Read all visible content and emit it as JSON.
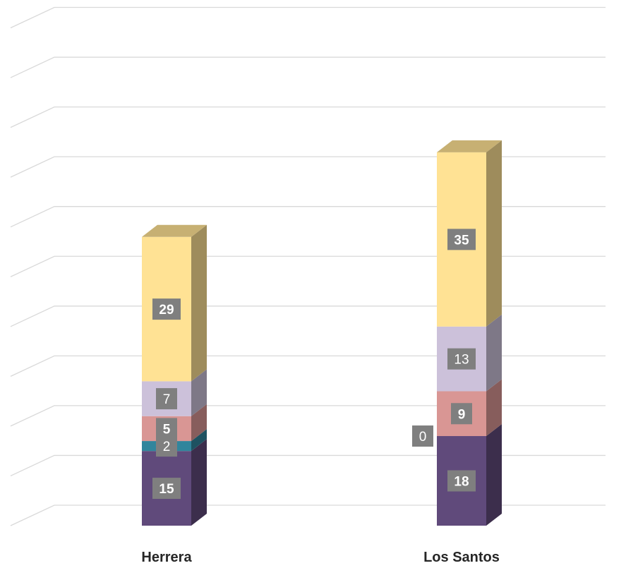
{
  "chart_data": {
    "type": "bar",
    "stacked": true,
    "three_d": true,
    "categories": [
      "Herrera",
      "Los Santos"
    ],
    "series": [
      {
        "values": [
          15,
          18
        ],
        "color": "#604a7b",
        "label_bold": true
      },
      {
        "values": [
          2,
          0
        ],
        "color": "#31859c",
        "label_bold": false
      },
      {
        "values": [
          5,
          9
        ],
        "color": "#d99694",
        "label_bold": true
      },
      {
        "values": [
          7,
          13
        ],
        "color": "#ccc1da",
        "label_bold": false
      },
      {
        "values": [
          29,
          35
        ],
        "color": "#ffe294",
        "label_bold": true
      }
    ],
    "ylim": [
      0,
      100
    ],
    "gridlines": 10,
    "grid": true,
    "legend": "none",
    "data_label_background": "#7f7f7f"
  }
}
